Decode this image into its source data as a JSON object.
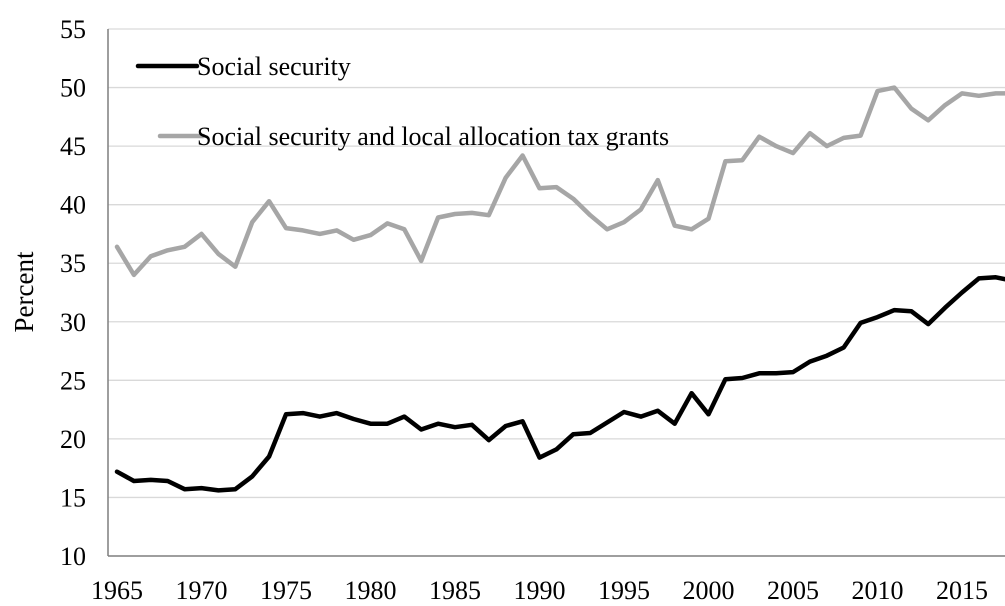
{
  "chart_data": {
    "type": "line",
    "title": "",
    "xlabel": "",
    "ylabel": "Percent",
    "xlim": [
      1965,
      2018
    ],
    "ylim": [
      10,
      55
    ],
    "y_ticks": [
      10,
      15,
      20,
      25,
      30,
      35,
      40,
      45,
      50,
      55
    ],
    "x_ticks": [
      1965,
      1970,
      1975,
      1980,
      1985,
      1990,
      1995,
      2000,
      2005,
      2010,
      2015
    ],
    "grid": "horizontal",
    "legend_position": "top-left",
    "x": [
      1965,
      1966,
      1967,
      1968,
      1969,
      1970,
      1971,
      1972,
      1973,
      1974,
      1975,
      1976,
      1977,
      1978,
      1979,
      1980,
      1981,
      1982,
      1983,
      1984,
      1985,
      1986,
      1987,
      1988,
      1989,
      1990,
      1991,
      1992,
      1993,
      1994,
      1995,
      1996,
      1997,
      1998,
      1999,
      2000,
      2001,
      2002,
      2003,
      2004,
      2005,
      2006,
      2007,
      2008,
      2009,
      2010,
      2011,
      2012,
      2013,
      2014,
      2015,
      2016,
      2017,
      2018
    ],
    "series": [
      {
        "name": "Social security",
        "color": "#000000",
        "values": [
          17.2,
          16.4,
          16.5,
          16.4,
          15.7,
          15.8,
          15.6,
          15.7,
          16.8,
          18.5,
          22.1,
          22.2,
          21.9,
          22.2,
          21.7,
          21.3,
          21.3,
          21.9,
          20.8,
          21.3,
          21.0,
          21.2,
          19.9,
          21.1,
          21.5,
          18.4,
          19.1,
          20.4,
          20.5,
          21.4,
          22.3,
          21.9,
          22.4,
          21.3,
          23.9,
          22.1,
          25.1,
          25.2,
          25.6,
          25.6,
          25.7,
          26.6,
          27.1,
          27.8,
          29.9,
          30.4,
          31.0,
          30.9,
          29.8,
          31.2,
          32.5,
          33.7,
          33.8,
          33.5
        ]
      },
      {
        "name": "Social security and local allocation tax grants",
        "color": "#a6a6a6",
        "values": [
          36.4,
          34.0,
          35.6,
          36.1,
          36.4,
          37.5,
          35.8,
          34.7,
          38.5,
          40.3,
          38.0,
          37.8,
          37.5,
          37.8,
          37.0,
          37.4,
          38.4,
          37.9,
          35.2,
          38.9,
          39.2,
          39.3,
          39.1,
          42.3,
          44.2,
          41.4,
          41.5,
          40.5,
          39.1,
          37.9,
          38.5,
          39.6,
          42.1,
          38.2,
          37.9,
          38.8,
          43.7,
          43.8,
          45.8,
          45.0,
          44.4,
          46.1,
          45.0,
          45.7,
          45.9,
          49.7,
          50.0,
          48.2,
          47.2,
          48.5,
          49.5,
          49.3,
          49.5,
          49.5
        ]
      }
    ]
  }
}
